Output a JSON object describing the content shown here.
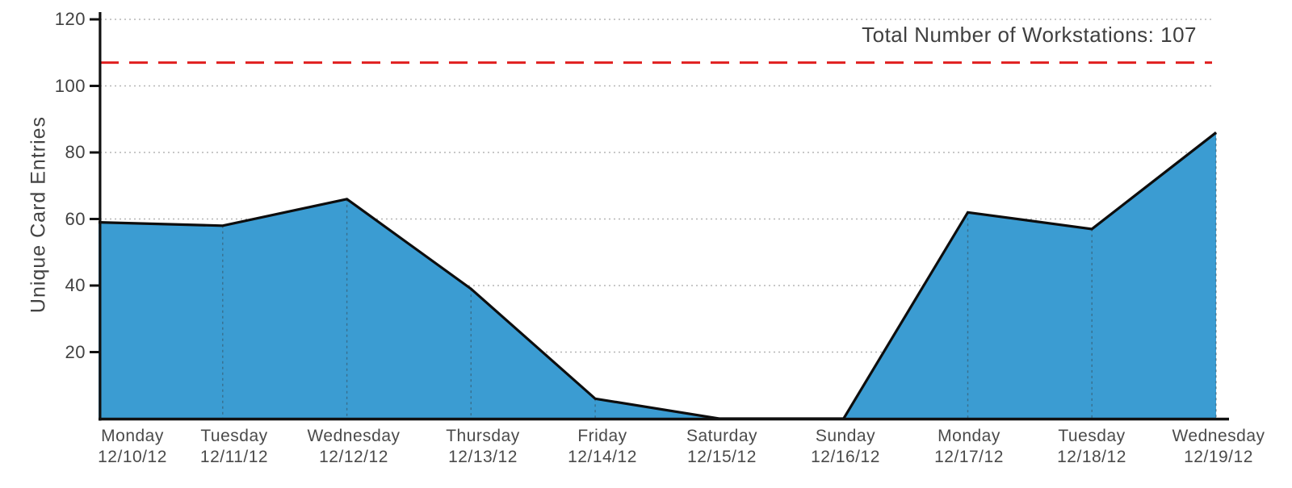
{
  "chart_data": {
    "type": "area",
    "title": "",
    "ylabel": "Unique Card Entries",
    "xlabel": "",
    "annotation": "Total Number of Workstations: 107",
    "reference_line": {
      "value": 107,
      "style": "dashed",
      "color": "#e01f1f"
    },
    "categories": [
      {
        "day": "Monday",
        "date": "12/10/12"
      },
      {
        "day": "Tuesday",
        "date": "12/11/12"
      },
      {
        "day": "Wednesday",
        "date": "12/12/12"
      },
      {
        "day": "Thursday",
        "date": "12/13/12"
      },
      {
        "day": "Friday",
        "date": "12/14/12"
      },
      {
        "day": "Saturday",
        "date": "12/15/12"
      },
      {
        "day": "Sunday",
        "date": "12/16/12"
      },
      {
        "day": "Monday",
        "date": "12/17/12"
      },
      {
        "day": "Tuesday",
        "date": "12/18/12"
      },
      {
        "day": "Wednesday",
        "date": "12/19/12"
      }
    ],
    "values": [
      59,
      58,
      66,
      39,
      6,
      0,
      0,
      62,
      57,
      86
    ],
    "yticks": [
      20,
      40,
      60,
      80,
      100,
      120
    ],
    "ylim": [
      0,
      124
    ],
    "grid": "horizontal-dotted",
    "legend": "none",
    "colors": {
      "area_fill": "#3b9cd2",
      "line": "#0d0d0d",
      "reference": "#e01f1f",
      "grid": "#b5b5b5",
      "axis": "#111111",
      "text": "#464646"
    }
  }
}
